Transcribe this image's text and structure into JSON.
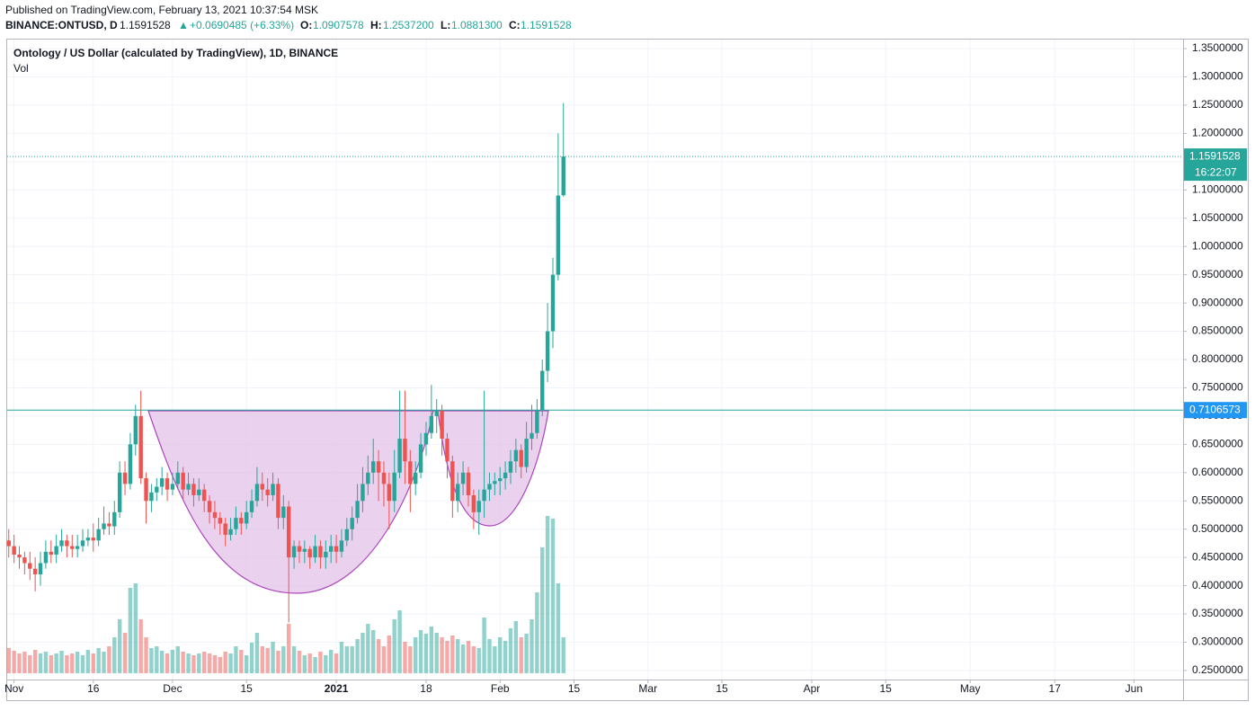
{
  "header": {
    "published": "Published on TradingView.com, February 13, 2021 10:37:54 MSK",
    "symbol": "BINANCE:ONTUSD, D",
    "last": "1.1591528",
    "arrow": "▲",
    "change": "+0.0690485 (+6.33%)",
    "o_label": "O:",
    "o": "1.0907578",
    "h_label": "H:",
    "h": "1.2537200",
    "l_label": "L:",
    "l": "1.0881300",
    "c_label": "C:",
    "c": "1.1591528"
  },
  "chart_data": {
    "type": "candlestick",
    "title": "Ontology / US Dollar (calculated by TradingView), 1D, BINANCE",
    "volume_label": "Vol",
    "up_color": "#26a69a",
    "down_color": "#ef5350",
    "open": [
      0.48,
      0.47,
      0.455,
      0.45,
      0.44,
      0.43,
      0.42,
      0.44,
      0.46,
      0.455,
      0.47,
      0.48,
      0.47,
      0.465,
      0.47,
      0.48,
      0.485,
      0.48,
      0.5,
      0.51,
      0.505,
      0.53,
      0.6,
      0.58,
      0.65,
      0.7,
      0.59,
      0.55,
      0.565,
      0.575,
      0.59,
      0.57,
      0.58,
      0.6,
      0.57,
      0.58,
      0.56,
      0.57,
      0.55,
      0.53,
      0.52,
      0.51,
      0.49,
      0.5,
      0.52,
      0.51,
      0.53,
      0.55,
      0.58,
      0.57,
      0.56,
      0.58,
      0.52,
      0.54,
      0.45,
      0.47,
      0.46,
      0.465,
      0.45,
      0.47,
      0.45,
      0.46,
      0.47,
      0.46,
      0.48,
      0.5,
      0.52,
      0.55,
      0.58,
      0.6,
      0.62,
      0.6,
      0.58,
      0.55,
      0.6,
      0.66,
      0.62,
      0.58,
      0.6,
      0.65,
      0.67,
      0.7,
      0.71,
      0.66,
      0.62,
      0.55,
      0.58,
      0.6,
      0.56,
      0.53,
      0.55,
      0.57,
      0.58,
      0.585,
      0.59,
      0.6,
      0.62,
      0.64,
      0.61,
      0.66,
      0.67,
      0.71,
      0.78,
      0.85,
      0.95,
      1.0907578
    ],
    "high": [
      0.5,
      0.49,
      0.47,
      0.46,
      0.46,
      0.45,
      0.46,
      0.48,
      0.48,
      0.49,
      0.5,
      0.49,
      0.49,
      0.49,
      0.5,
      0.5,
      0.51,
      0.52,
      0.54,
      0.53,
      0.55,
      0.62,
      0.62,
      0.67,
      0.72,
      0.745,
      0.6,
      0.58,
      0.59,
      0.61,
      0.6,
      0.6,
      0.62,
      0.61,
      0.6,
      0.59,
      0.59,
      0.58,
      0.56,
      0.55,
      0.53,
      0.52,
      0.52,
      0.54,
      0.53,
      0.55,
      0.57,
      0.61,
      0.6,
      0.59,
      0.6,
      0.59,
      0.56,
      0.55,
      0.48,
      0.48,
      0.48,
      0.47,
      0.49,
      0.48,
      0.48,
      0.49,
      0.49,
      0.5,
      0.52,
      0.54,
      0.58,
      0.61,
      0.63,
      0.66,
      0.64,
      0.62,
      0.6,
      0.64,
      0.745,
      0.745,
      0.64,
      0.62,
      0.67,
      0.69,
      0.755,
      0.73,
      0.72,
      0.67,
      0.63,
      0.6,
      0.62,
      0.61,
      0.57,
      0.57,
      0.745,
      0.6,
      0.6,
      0.61,
      0.62,
      0.64,
      0.66,
      0.65,
      0.69,
      0.72,
      0.73,
      0.8,
      0.9,
      0.98,
      1.2,
      1.25372
    ],
    "low": [
      0.45,
      0.44,
      0.43,
      0.42,
      0.41,
      0.39,
      0.4,
      0.43,
      0.44,
      0.44,
      0.46,
      0.45,
      0.45,
      0.45,
      0.46,
      0.47,
      0.46,
      0.47,
      0.49,
      0.49,
      0.49,
      0.52,
      0.56,
      0.57,
      0.63,
      0.58,
      0.51,
      0.53,
      0.55,
      0.56,
      0.55,
      0.56,
      0.57,
      0.55,
      0.56,
      0.54,
      0.55,
      0.53,
      0.51,
      0.5,
      0.49,
      0.47,
      0.48,
      0.49,
      0.49,
      0.5,
      0.52,
      0.54,
      0.55,
      0.54,
      0.55,
      0.5,
      0.5,
      0.335,
      0.43,
      0.44,
      0.44,
      0.43,
      0.44,
      0.43,
      0.43,
      0.44,
      0.44,
      0.45,
      0.47,
      0.48,
      0.51,
      0.53,
      0.56,
      0.58,
      0.55,
      0.54,
      0.5,
      0.53,
      0.59,
      0.58,
      0.53,
      0.56,
      0.59,
      0.63,
      0.66,
      0.67,
      0.63,
      0.59,
      0.52,
      0.53,
      0.56,
      0.54,
      0.5,
      0.49,
      0.52,
      0.55,
      0.56,
      0.56,
      0.57,
      0.58,
      0.6,
      0.59,
      0.6,
      0.64,
      0.66,
      0.7,
      0.76,
      0.82,
      0.94,
      1.08813
    ],
    "close": [
      0.47,
      0.455,
      0.45,
      0.44,
      0.43,
      0.42,
      0.44,
      0.46,
      0.455,
      0.47,
      0.48,
      0.47,
      0.465,
      0.47,
      0.48,
      0.485,
      0.48,
      0.5,
      0.51,
      0.505,
      0.53,
      0.6,
      0.58,
      0.65,
      0.7,
      0.59,
      0.55,
      0.565,
      0.575,
      0.59,
      0.57,
      0.58,
      0.6,
      0.57,
      0.58,
      0.56,
      0.57,
      0.55,
      0.53,
      0.52,
      0.51,
      0.49,
      0.5,
      0.52,
      0.51,
      0.53,
      0.55,
      0.58,
      0.57,
      0.56,
      0.58,
      0.52,
      0.54,
      0.45,
      0.47,
      0.46,
      0.465,
      0.45,
      0.47,
      0.45,
      0.46,
      0.47,
      0.46,
      0.48,
      0.5,
      0.52,
      0.55,
      0.58,
      0.6,
      0.62,
      0.6,
      0.58,
      0.55,
      0.6,
      0.66,
      0.62,
      0.58,
      0.6,
      0.65,
      0.67,
      0.7,
      0.71,
      0.66,
      0.62,
      0.55,
      0.58,
      0.6,
      0.56,
      0.53,
      0.55,
      0.57,
      0.58,
      0.585,
      0.59,
      0.6,
      0.62,
      0.64,
      0.61,
      0.66,
      0.67,
      0.71,
      0.78,
      0.85,
      0.95,
      1.09,
      1.1591528
    ],
    "volume": [
      28,
      25,
      22,
      24,
      20,
      26,
      22,
      24,
      20,
      22,
      25,
      20,
      22,
      24,
      20,
      26,
      22,
      28,
      24,
      30,
      40,
      60,
      45,
      95,
      100,
      60,
      40,
      28,
      30,
      25,
      22,
      26,
      30,
      24,
      22,
      20,
      22,
      24,
      22,
      20,
      18,
      24,
      22,
      30,
      26,
      20,
      34,
      45,
      30,
      28,
      35,
      25,
      30,
      55,
      30,
      25,
      20,
      22,
      18,
      24,
      20,
      26,
      22,
      35,
      30,
      30,
      38,
      45,
      55,
      48,
      38,
      30,
      42,
      60,
      70,
      35,
      30,
      40,
      48,
      44,
      52,
      45,
      40,
      36,
      42,
      38,
      32,
      36,
      30,
      28,
      62,
      38,
      30,
      40,
      36,
      50,
      58,
      40,
      44,
      60,
      90,
      140,
      175,
      172,
      100,
      40
    ],
    "xlim": [
      -0.3,
      222.3
    ],
    "xticks": [
      {
        "value": 1,
        "label": "Nov"
      },
      {
        "value": 16,
        "label": "16"
      },
      {
        "value": 31,
        "label": "Dec"
      },
      {
        "value": 45,
        "label": "15"
      },
      {
        "value": 62,
        "label": "2021"
      },
      {
        "value": 79,
        "label": "18"
      },
      {
        "value": 93,
        "label": "Feb"
      },
      {
        "value": 107,
        "label": "15"
      },
      {
        "value": 121,
        "label": "Mar"
      },
      {
        "value": 135,
        "label": "15"
      },
      {
        "value": 152,
        "label": "Apr"
      },
      {
        "value": 166,
        "label": "15"
      },
      {
        "value": 182,
        "label": "May"
      },
      {
        "value": 198,
        "label": "17"
      },
      {
        "value": 213,
        "label": "Jun"
      }
    ],
    "ylim": [
      0.234,
      1.366
    ],
    "yticks": [
      {
        "value": 0.25,
        "label": "0.2500000"
      },
      {
        "value": 0.3,
        "label": "0.3000000"
      },
      {
        "value": 0.35,
        "label": "0.3500000"
      },
      {
        "value": 0.4,
        "label": "0.4000000"
      },
      {
        "value": 0.45,
        "label": "0.4500000"
      },
      {
        "value": 0.5,
        "label": "0.5000000"
      },
      {
        "value": 0.55,
        "label": "0.5500000"
      },
      {
        "value": 0.6,
        "label": "0.6000000"
      },
      {
        "value": 0.65,
        "label": "0.6500000"
      },
      {
        "value": 0.7,
        "label": "0.7000000"
      },
      {
        "value": 0.75,
        "label": "0.7500000"
      },
      {
        "value": 0.8,
        "label": "0.8000000"
      },
      {
        "value": 0.85,
        "label": "0.8500000"
      },
      {
        "value": 0.9,
        "label": "0.9000000"
      },
      {
        "value": 0.95,
        "label": "0.9500000"
      },
      {
        "value": 1.0,
        "label": "1.0000000"
      },
      {
        "value": 1.05,
        "label": "1.0500000"
      },
      {
        "value": 1.1,
        "label": "1.1000000"
      },
      {
        "value": 1.15,
        "label": "1.1500000"
      },
      {
        "value": 1.2,
        "label": "1.2000000"
      },
      {
        "value": 1.25,
        "label": "1.2500000"
      },
      {
        "value": 1.3,
        "label": "1.3000000"
      },
      {
        "value": 1.35,
        "label": "1.3500000"
      }
    ],
    "grid": true,
    "level": {
      "value": 0.7106573,
      "label": "0.7106573",
      "color": "#2196f3"
    },
    "last_price": {
      "label": "1.1591528",
      "countdown": "16:22:07"
    }
  }
}
